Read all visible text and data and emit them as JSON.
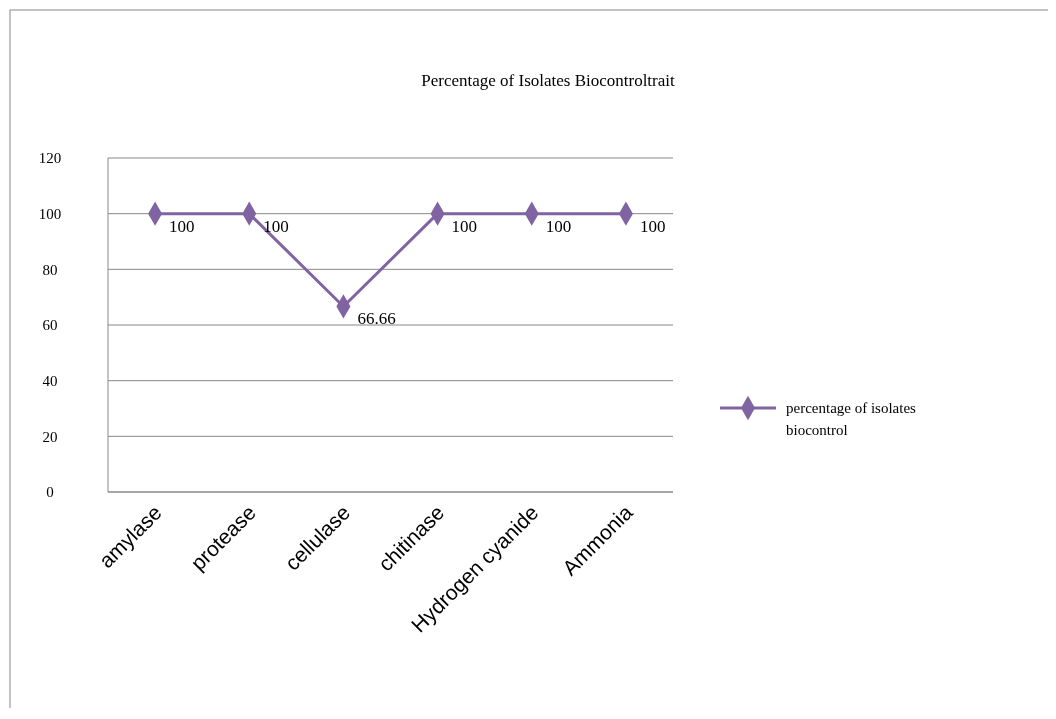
{
  "chart_data": {
    "type": "line",
    "title": "Percentage of Isolates Biocontroltrait",
    "categories": [
      "amylase",
      "protease",
      "cellulase",
      "chitinase",
      "Hydrogen cyanide",
      "Ammonia"
    ],
    "series": [
      {
        "name": "percentage of isolates biocontrol",
        "color": "#8064a2",
        "values": [
          100,
          100,
          66.66,
          100,
          100,
          100
        ]
      }
    ],
    "ylim": [
      0,
      120
    ],
    "yticks": [
      0,
      20,
      40,
      60,
      80,
      100,
      120
    ],
    "grid": "y",
    "legend": "right",
    "marker": "diamond",
    "line_style": "solid",
    "data_labels": true
  }
}
